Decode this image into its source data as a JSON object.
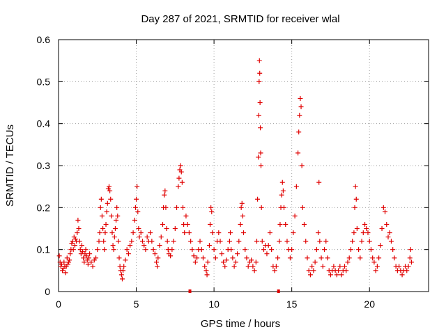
{
  "chart_data": {
    "type": "scatter",
    "title": "Day 287 of 2021, SRMTID for receiver wlal",
    "xlabel": "GPS time / hours",
    "ylabel": "SRMTID / TECUs",
    "xlim": [
      0,
      23.8
    ],
    "ylim": [
      0,
      0.6
    ],
    "xticks": [
      0,
      5,
      10,
      15,
      20
    ],
    "xtick_labels": [
      "0",
      "5",
      "10",
      "15",
      "20"
    ],
    "yticks": [
      0,
      0.1,
      0.2,
      0.3,
      0.4,
      0.5,
      0.6
    ],
    "ytick_labels": [
      "0",
      "0.1",
      "0.2",
      "0.3",
      "0.4",
      "0.5",
      "0.6"
    ],
    "grid": true,
    "marker": "+",
    "color": "#e00000",
    "gap_markers_x": [
      8.45,
      14.15
    ],
    "series": [
      {
        "name": "SRMTID",
        "points": [
          [
            0.05,
            0.085
          ],
          [
            0.1,
            0.07
          ],
          [
            0.15,
            0.06
          ],
          [
            0.2,
            0.065
          ],
          [
            0.25,
            0.05
          ],
          [
            0.3,
            0.055
          ],
          [
            0.35,
            0.07
          ],
          [
            0.4,
            0.06
          ],
          [
            0.45,
            0.045
          ],
          [
            0.5,
            0.06
          ],
          [
            0.55,
            0.08
          ],
          [
            0.6,
            0.065
          ],
          [
            0.65,
            0.07
          ],
          [
            0.7,
            0.075
          ],
          [
            0.75,
            0.09
          ],
          [
            0.8,
            0.1
          ],
          [
            0.85,
            0.115
          ],
          [
            0.9,
            0.12
          ],
          [
            0.95,
            0.1
          ],
          [
            1.0,
            0.13
          ],
          [
            1.05,
            0.11
          ],
          [
            1.1,
            0.125
          ],
          [
            1.15,
            0.12
          ],
          [
            1.2,
            0.14
          ],
          [
            1.25,
            0.17
          ],
          [
            1.3,
            0.15
          ],
          [
            1.35,
            0.12
          ],
          [
            1.4,
            0.1
          ],
          [
            1.45,
            0.09
          ],
          [
            1.5,
            0.11
          ],
          [
            1.55,
            0.095
          ],
          [
            1.6,
            0.08
          ],
          [
            1.65,
            0.07
          ],
          [
            1.7,
            0.09
          ],
          [
            1.75,
            0.1
          ],
          [
            1.8,
            0.085
          ],
          [
            1.85,
            0.075
          ],
          [
            1.9,
            0.065
          ],
          [
            1.95,
            0.08
          ],
          [
            2.0,
            0.09
          ],
          [
            2.1,
            0.07
          ],
          [
            2.2,
            0.06
          ],
          [
            2.3,
            0.075
          ],
          [
            2.4,
            0.08
          ],
          [
            2.5,
            0.1
          ],
          [
            2.6,
            0.12
          ],
          [
            2.65,
            0.14
          ],
          [
            2.7,
            0.2
          ],
          [
            2.75,
            0.22
          ],
          [
            2.8,
            0.18
          ],
          [
            2.85,
            0.15
          ],
          [
            2.9,
            0.12
          ],
          [
            2.95,
            0.1
          ],
          [
            3.0,
            0.14
          ],
          [
            3.05,
            0.16
          ],
          [
            3.1,
            0.19
          ],
          [
            3.15,
            0.21
          ],
          [
            3.2,
            0.245
          ],
          [
            3.25,
            0.25
          ],
          [
            3.3,
            0.24
          ],
          [
            3.35,
            0.22
          ],
          [
            3.4,
            0.18
          ],
          [
            3.45,
            0.14
          ],
          [
            3.5,
            0.11
          ],
          [
            3.55,
            0.1
          ],
          [
            3.6,
            0.13
          ],
          [
            3.65,
            0.15
          ],
          [
            3.7,
            0.17
          ],
          [
            3.75,
            0.2
          ],
          [
            3.8,
            0.18
          ],
          [
            3.85,
            0.12
          ],
          [
            3.9,
            0.08
          ],
          [
            3.95,
            0.06
          ],
          [
            4.0,
            0.05
          ],
          [
            4.05,
            0.04
          ],
          [
            4.1,
            0.03
          ],
          [
            4.15,
            0.05
          ],
          [
            4.2,
            0.06
          ],
          [
            4.3,
            0.075
          ],
          [
            4.4,
            0.1
          ],
          [
            4.5,
            0.09
          ],
          [
            4.6,
            0.11
          ],
          [
            4.7,
            0.12
          ],
          [
            4.8,
            0.14
          ],
          [
            4.9,
            0.17
          ],
          [
            4.95,
            0.2
          ],
          [
            5.0,
            0.22
          ],
          [
            5.05,
            0.25
          ],
          [
            5.1,
            0.19
          ],
          [
            5.15,
            0.15
          ],
          [
            5.2,
            0.13
          ],
          [
            5.3,
            0.14
          ],
          [
            5.4,
            0.12
          ],
          [
            5.5,
            0.11
          ],
          [
            5.6,
            0.1
          ],
          [
            5.7,
            0.13
          ],
          [
            5.8,
            0.12
          ],
          [
            5.9,
            0.14
          ],
          [
            6.0,
            0.12
          ],
          [
            6.1,
            0.1
          ],
          [
            6.2,
            0.09
          ],
          [
            6.3,
            0.07
          ],
          [
            6.35,
            0.06
          ],
          [
            6.4,
            0.08
          ],
          [
            6.5,
            0.11
          ],
          [
            6.6,
            0.13
          ],
          [
            6.7,
            0.16
          ],
          [
            6.75,
            0.2
          ],
          [
            6.8,
            0.23
          ],
          [
            6.85,
            0.24
          ],
          [
            6.9,
            0.2
          ],
          [
            6.95,
            0.15
          ],
          [
            7.0,
            0.12
          ],
          [
            7.05,
            0.1
          ],
          [
            7.1,
            0.09
          ],
          [
            7.2,
            0.085
          ],
          [
            7.3,
            0.1
          ],
          [
            7.4,
            0.12
          ],
          [
            7.5,
            0.15
          ],
          [
            7.6,
            0.2
          ],
          [
            7.7,
            0.25
          ],
          [
            7.75,
            0.27
          ],
          [
            7.8,
            0.29
          ],
          [
            7.85,
            0.3
          ],
          [
            7.9,
            0.285
          ],
          [
            7.95,
            0.26
          ],
          [
            8.0,
            0.2
          ],
          [
            8.05,
            0.16
          ],
          [
            8.1,
            0.14
          ],
          [
            8.2,
            0.18
          ],
          [
            8.3,
            0.16
          ],
          [
            8.4,
            0.14
          ],
          [
            8.5,
            0.12
          ],
          [
            8.6,
            0.1
          ],
          [
            8.7,
            0.085
          ],
          [
            8.8,
            0.07
          ],
          [
            8.9,
            0.08
          ],
          [
            9.0,
            0.1
          ],
          [
            9.1,
            0.12
          ],
          [
            9.2,
            0.1
          ],
          [
            9.3,
            0.08
          ],
          [
            9.4,
            0.06
          ],
          [
            9.5,
            0.05
          ],
          [
            9.55,
            0.04
          ],
          [
            9.6,
            0.07
          ],
          [
            9.7,
            0.11
          ],
          [
            9.75,
            0.16
          ],
          [
            9.8,
            0.2
          ],
          [
            9.85,
            0.19
          ],
          [
            9.9,
            0.14
          ],
          [
            10.0,
            0.1
          ],
          [
            10.1,
            0.08
          ],
          [
            10.2,
            0.12
          ],
          [
            10.3,
            0.14
          ],
          [
            10.4,
            0.12
          ],
          [
            10.5,
            0.09
          ],
          [
            10.6,
            0.07
          ],
          [
            10.7,
            0.06
          ],
          [
            10.8,
            0.075
          ],
          [
            10.9,
            0.1
          ],
          [
            11.0,
            0.12
          ],
          [
            11.05,
            0.14
          ],
          [
            11.1,
            0.1
          ],
          [
            11.2,
            0.08
          ],
          [
            11.3,
            0.06
          ],
          [
            11.4,
            0.07
          ],
          [
            11.5,
            0.09
          ],
          [
            11.6,
            0.12
          ],
          [
            11.7,
            0.16
          ],
          [
            11.75,
            0.2
          ],
          [
            11.8,
            0.21
          ],
          [
            11.85,
            0.18
          ],
          [
            11.9,
            0.14
          ],
          [
            12.0,
            0.1
          ],
          [
            12.1,
            0.08
          ],
          [
            12.2,
            0.06
          ],
          [
            12.3,
            0.07
          ],
          [
            12.4,
            0.075
          ],
          [
            12.5,
            0.06
          ],
          [
            12.6,
            0.05
          ],
          [
            12.7,
            0.07
          ],
          [
            12.75,
            0.12
          ],
          [
            12.8,
            0.22
          ],
          [
            12.85,
            0.32
          ],
          [
            12.88,
            0.42
          ],
          [
            12.9,
            0.5
          ],
          [
            12.92,
            0.55
          ],
          [
            12.94,
            0.52
          ],
          [
            12.96,
            0.45
          ],
          [
            12.98,
            0.39
          ],
          [
            13.0,
            0.33
          ],
          [
            13.02,
            0.3
          ],
          [
            13.05,
            0.2
          ],
          [
            13.1,
            0.12
          ],
          [
            13.2,
            0.1
          ],
          [
            13.3,
            0.11
          ],
          [
            13.4,
            0.09
          ],
          [
            13.5,
            0.11
          ],
          [
            13.6,
            0.14
          ],
          [
            13.7,
            0.1
          ],
          [
            13.8,
            0.06
          ],
          [
            13.9,
            0.05
          ],
          [
            14.0,
            0.06
          ],
          [
            14.1,
            0.08
          ],
          [
            14.2,
            0.12
          ],
          [
            14.25,
            0.16
          ],
          [
            14.3,
            0.2
          ],
          [
            14.35,
            0.23
          ],
          [
            14.4,
            0.26
          ],
          [
            14.45,
            0.24
          ],
          [
            14.5,
            0.2
          ],
          [
            14.6,
            0.16
          ],
          [
            14.7,
            0.12
          ],
          [
            14.8,
            0.1
          ],
          [
            14.9,
            0.08
          ],
          [
            15.0,
            0.1
          ],
          [
            15.1,
            0.14
          ],
          [
            15.2,
            0.18
          ],
          [
            15.3,
            0.25
          ],
          [
            15.4,
            0.33
          ],
          [
            15.45,
            0.38
          ],
          [
            15.5,
            0.42
          ],
          [
            15.55,
            0.46
          ],
          [
            15.6,
            0.44
          ],
          [
            15.65,
            0.3
          ],
          [
            15.7,
            0.2
          ],
          [
            15.8,
            0.16
          ],
          [
            15.9,
            0.12
          ],
          [
            16.0,
            0.08
          ],
          [
            16.1,
            0.05
          ],
          [
            16.2,
            0.04
          ],
          [
            16.3,
            0.06
          ],
          [
            16.4,
            0.05
          ],
          [
            16.5,
            0.07
          ],
          [
            16.6,
            0.1
          ],
          [
            16.7,
            0.14
          ],
          [
            16.75,
            0.26
          ],
          [
            16.8,
            0.12
          ],
          [
            16.9,
            0.08
          ],
          [
            17.0,
            0.06
          ],
          [
            17.1,
            0.1
          ],
          [
            17.2,
            0.12
          ],
          [
            17.3,
            0.08
          ],
          [
            17.4,
            0.05
          ],
          [
            17.5,
            0.04
          ],
          [
            17.6,
            0.05
          ],
          [
            17.7,
            0.06
          ],
          [
            17.8,
            0.05
          ],
          [
            17.9,
            0.04
          ],
          [
            18.0,
            0.05
          ],
          [
            18.1,
            0.06
          ],
          [
            18.2,
            0.04
          ],
          [
            18.3,
            0.05
          ],
          [
            18.4,
            0.06
          ],
          [
            18.5,
            0.05
          ],
          [
            18.6,
            0.07
          ],
          [
            18.7,
            0.08
          ],
          [
            18.8,
            0.1
          ],
          [
            18.9,
            0.12
          ],
          [
            19.0,
            0.14
          ],
          [
            19.05,
            0.2
          ],
          [
            19.1,
            0.25
          ],
          [
            19.15,
            0.22
          ],
          [
            19.2,
            0.15
          ],
          [
            19.3,
            0.1
          ],
          [
            19.4,
            0.08
          ],
          [
            19.5,
            0.12
          ],
          [
            19.6,
            0.14
          ],
          [
            19.7,
            0.16
          ],
          [
            19.8,
            0.15
          ],
          [
            19.9,
            0.14
          ],
          [
            20.0,
            0.12
          ],
          [
            20.1,
            0.1
          ],
          [
            20.2,
            0.08
          ],
          [
            20.3,
            0.07
          ],
          [
            20.4,
            0.05
          ],
          [
            20.5,
            0.06
          ],
          [
            20.6,
            0.08
          ],
          [
            20.7,
            0.11
          ],
          [
            20.8,
            0.15
          ],
          [
            20.9,
            0.2
          ],
          [
            21.0,
            0.19
          ],
          [
            21.1,
            0.16
          ],
          [
            21.2,
            0.13
          ],
          [
            21.3,
            0.14
          ],
          [
            21.4,
            0.12
          ],
          [
            21.5,
            0.1
          ],
          [
            21.6,
            0.08
          ],
          [
            21.7,
            0.06
          ],
          [
            21.8,
            0.05
          ],
          [
            21.9,
            0.06
          ],
          [
            22.0,
            0.05
          ],
          [
            22.1,
            0.04
          ],
          [
            22.2,
            0.05
          ],
          [
            22.3,
            0.06
          ],
          [
            22.4,
            0.05
          ],
          [
            22.5,
            0.06
          ],
          [
            22.6,
            0.08
          ],
          [
            22.65,
            0.1
          ],
          [
            22.7,
            0.07
          ]
        ]
      }
    ]
  }
}
